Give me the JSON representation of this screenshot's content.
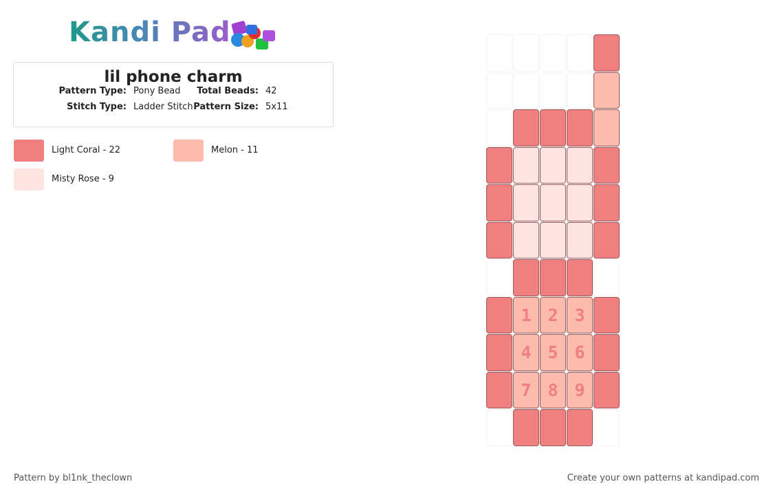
{
  "header": {
    "logo": "Kandi Pad"
  },
  "card": {
    "title": "lil phone charm",
    "fields": [
      [
        {
          "label": "Pattern Type:",
          "value": "Pony Bead"
        },
        {
          "label": "Total Beads:",
          "value": 42
        }
      ],
      [
        {
          "label": "Stitch Type:",
          "value": "Ladder Stitch"
        },
        {
          "label": "Pattern Size:",
          "value": "5x11"
        }
      ]
    ]
  },
  "legend": [
    {
      "label": "Light Coral - 22",
      "color": "#f08080"
    },
    {
      "label": "Melon - 11",
      "color": "#fcbbad"
    },
    {
      "label": "Misty Rose - 9",
      "color": "#ffe4e1"
    }
  ],
  "grid": {
    "rows": [
      [
        null,
        null,
        null,
        null,
        0
      ],
      [
        null,
        null,
        null,
        null,
        1
      ],
      [
        null,
        0,
        0,
        0,
        1
      ],
      [
        0,
        2,
        2,
        2,
        0
      ],
      [
        0,
        2,
        2,
        2,
        0
      ],
      [
        0,
        2,
        2,
        2,
        0
      ],
      [
        null,
        0,
        0,
        0,
        null
      ],
      [
        0,
        {
          "bead": 1,
          "label": "1"
        },
        {
          "bead": 1,
          "label": "2"
        },
        {
          "bead": 1,
          "label": "3"
        },
        0
      ],
      [
        0,
        {
          "bead": 1,
          "label": "4"
        },
        {
          "bead": 1,
          "label": "5"
        },
        {
          "bead": 1,
          "label": "6"
        },
        0
      ],
      [
        0,
        {
          "bead": 1,
          "label": "7"
        },
        {
          "bead": 1,
          "label": "8"
        },
        {
          "bead": 1,
          "label": "9"
        },
        0
      ],
      [
        null,
        0,
        0,
        0,
        null
      ]
    ]
  },
  "footer": {
    "left": "Pattern by bl1nk_theclown",
    "right": "Create your own patterns at kandipad.com"
  }
}
